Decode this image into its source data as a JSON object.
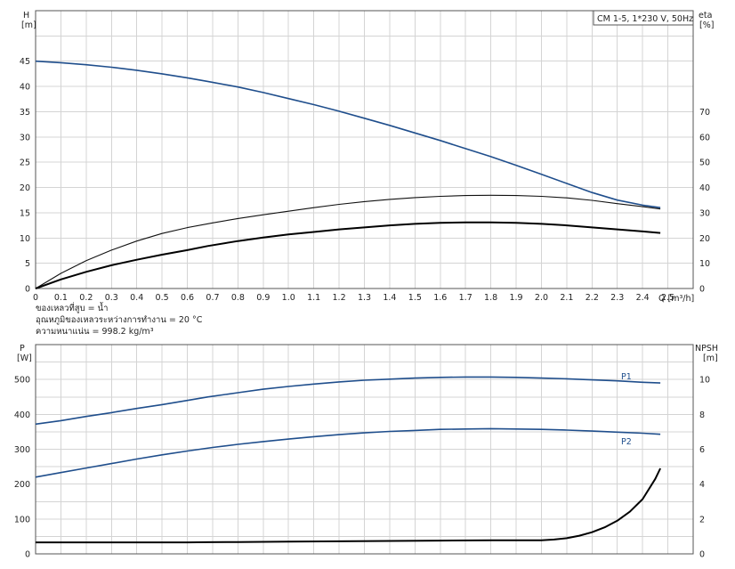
{
  "chart_data": [
    {
      "type": "line",
      "title": "CM 1-5, 1*230 V, 50Hz",
      "ylabel": "H",
      "ylabel_unit": "[m]",
      "ylabel_right": "eta",
      "ylabel_right_unit": "[%]",
      "xlabel": "Q [m³/h]",
      "xlim": [
        0,
        2.6
      ],
      "ylim": [
        0,
        55
      ],
      "ylim_right": [
        0,
        110
      ],
      "x_ticks": [
        "0",
        "0.1",
        "0.2",
        "0.3",
        "0.4",
        "0.5",
        "0.6",
        "0.7",
        "0.8",
        "0.9",
        "1.0",
        "1.1",
        "1.2",
        "1.3",
        "1.4",
        "1.5",
        "1.6",
        "1.7",
        "1.8",
        "1.9",
        "2.0",
        "2.1",
        "2.2",
        "2.3",
        "2.4",
        "2.5"
      ],
      "y_ticks": [
        "0",
        "5",
        "10",
        "15",
        "20",
        "25",
        "30",
        "35",
        "40",
        "45"
      ],
      "y_right_ticks": [
        "0",
        "10",
        "20",
        "30",
        "40",
        "50",
        "60",
        "70"
      ],
      "grid": true,
      "notes": [
        "ของเหลวที่สูบ = น้ำ",
        "อุณหภูมิของเหลวระหว่างการทำงาน = 20 °C",
        "ความหนาแน่น = 998.2 kg/m³"
      ],
      "series": [
        {
          "axis": "left",
          "color": "#1f4e8c",
          "x": [
            0,
            0.1,
            0.2,
            0.3,
            0.4,
            0.5,
            0.6,
            0.68,
            0.8,
            0.9,
            1.0,
            1.1,
            1.2,
            1.3,
            1.4,
            1.5,
            1.6,
            1.7,
            1.8,
            1.9,
            2.0,
            2.1,
            2.2,
            2.3,
            2.4,
            2.47
          ],
          "y": [
            45,
            44.7,
            44.3,
            43.8,
            43.2,
            42.5,
            41.7,
            41.0,
            39.9,
            38.8,
            37.6,
            36.4,
            35.1,
            33.7,
            32.3,
            30.8,
            29.3,
            27.7,
            26.1,
            24.4,
            22.6,
            20.8,
            19.0,
            17.5,
            16.5,
            16.0
          ]
        },
        {
          "axis": "right",
          "color": "#111111",
          "x": [
            0,
            0.1,
            0.2,
            0.3,
            0.4,
            0.5,
            0.6,
            0.7,
            0.8,
            0.9,
            1.0,
            1.1,
            1.2,
            1.3,
            1.4,
            1.5,
            1.6,
            1.7,
            1.8,
            1.9,
            2.0,
            2.1,
            2.2,
            2.3,
            2.4,
            2.47
          ],
          "y": [
            0,
            6.0,
            11.0,
            15.2,
            18.8,
            21.8,
            24.1,
            26.0,
            27.7,
            29.2,
            30.6,
            32.0,
            33.3,
            34.4,
            35.3,
            36.0,
            36.5,
            36.8,
            36.9,
            36.8,
            36.5,
            35.9,
            34.9,
            33.6,
            32.4,
            31.5
          ]
        },
        {
          "axis": "left",
          "color": "#000000",
          "x": [
            0,
            0.1,
            0.2,
            0.3,
            0.4,
            0.5,
            0.6,
            0.68,
            0.8,
            0.9,
            1.0,
            1.1,
            1.2,
            1.3,
            1.4,
            1.5,
            1.6,
            1.7,
            1.8,
            1.9,
            2.0,
            2.1,
            2.2,
            2.3,
            2.4,
            2.47
          ],
          "y": [
            0,
            1.8,
            3.3,
            4.6,
            5.7,
            6.7,
            7.6,
            8.4,
            9.4,
            10.1,
            10.7,
            11.2,
            11.7,
            12.1,
            12.5,
            12.8,
            13.0,
            13.1,
            13.1,
            13.0,
            12.8,
            12.5,
            12.1,
            11.7,
            11.3,
            11.0
          ]
        }
      ]
    },
    {
      "type": "line",
      "ylabel": "P",
      "ylabel_unit": "[W]",
      "ylabel_right": "NPSH",
      "ylabel_right_unit": "[m]",
      "xlim": [
        0,
        2.6
      ],
      "ylim": [
        0,
        600
      ],
      "ylim_right": [
        0,
        12
      ],
      "y_ticks": [
        "0",
        "100",
        "200",
        "300",
        "400",
        "500"
      ],
      "y_right_ticks": [
        "0",
        "2",
        "4",
        "6",
        "8",
        "10"
      ],
      "grid": true,
      "series": [
        {
          "name": "P1",
          "axis": "left",
          "color": "#1f4e8c",
          "x": [
            0,
            0.1,
            0.2,
            0.3,
            0.4,
            0.5,
            0.6,
            0.68,
            0.8,
            0.9,
            1.0,
            1.1,
            1.2,
            1.3,
            1.4,
            1.5,
            1.6,
            1.7,
            1.8,
            1.9,
            2.0,
            2.1,
            2.2,
            2.3,
            2.4,
            2.47
          ],
          "y": [
            372,
            382,
            394,
            405,
            417,
            428,
            440,
            450,
            462,
            472,
            480,
            487,
            493,
            498,
            501,
            504,
            506,
            507,
            507,
            506,
            504,
            502,
            499,
            496,
            492,
            490
          ]
        },
        {
          "name": "P2",
          "axis": "left",
          "color": "#1f4e8c",
          "x": [
            0,
            0.1,
            0.2,
            0.3,
            0.4,
            0.5,
            0.6,
            0.7,
            0.8,
            0.9,
            1.0,
            1.1,
            1.2,
            1.3,
            1.4,
            1.5,
            1.6,
            1.7,
            1.8,
            1.9,
            2.0,
            2.1,
            2.2,
            2.3,
            2.4,
            2.47
          ],
          "y": [
            220,
            233,
            246,
            259,
            272,
            284,
            295,
            305,
            314,
            322,
            329,
            336,
            342,
            347,
            351,
            354,
            357,
            358,
            359,
            358,
            357,
            355,
            352,
            349,
            346,
            343
          ]
        },
        {
          "axis": "right",
          "color": "#000000",
          "x": [
            0,
            0.3,
            0.6,
            0.68,
            0.8,
            1.0,
            1.2,
            1.4,
            1.6,
            1.8,
            2.0,
            2.05,
            2.1,
            2.15,
            2.2,
            2.25,
            2.3,
            2.35,
            2.4,
            2.45,
            2.47
          ],
          "y": [
            0.66,
            0.66,
            0.66,
            0.67,
            0.68,
            0.7,
            0.72,
            0.74,
            0.76,
            0.78,
            0.78,
            0.82,
            0.9,
            1.04,
            1.24,
            1.52,
            1.9,
            2.42,
            3.14,
            4.3,
            4.9
          ]
        }
      ]
    }
  ]
}
